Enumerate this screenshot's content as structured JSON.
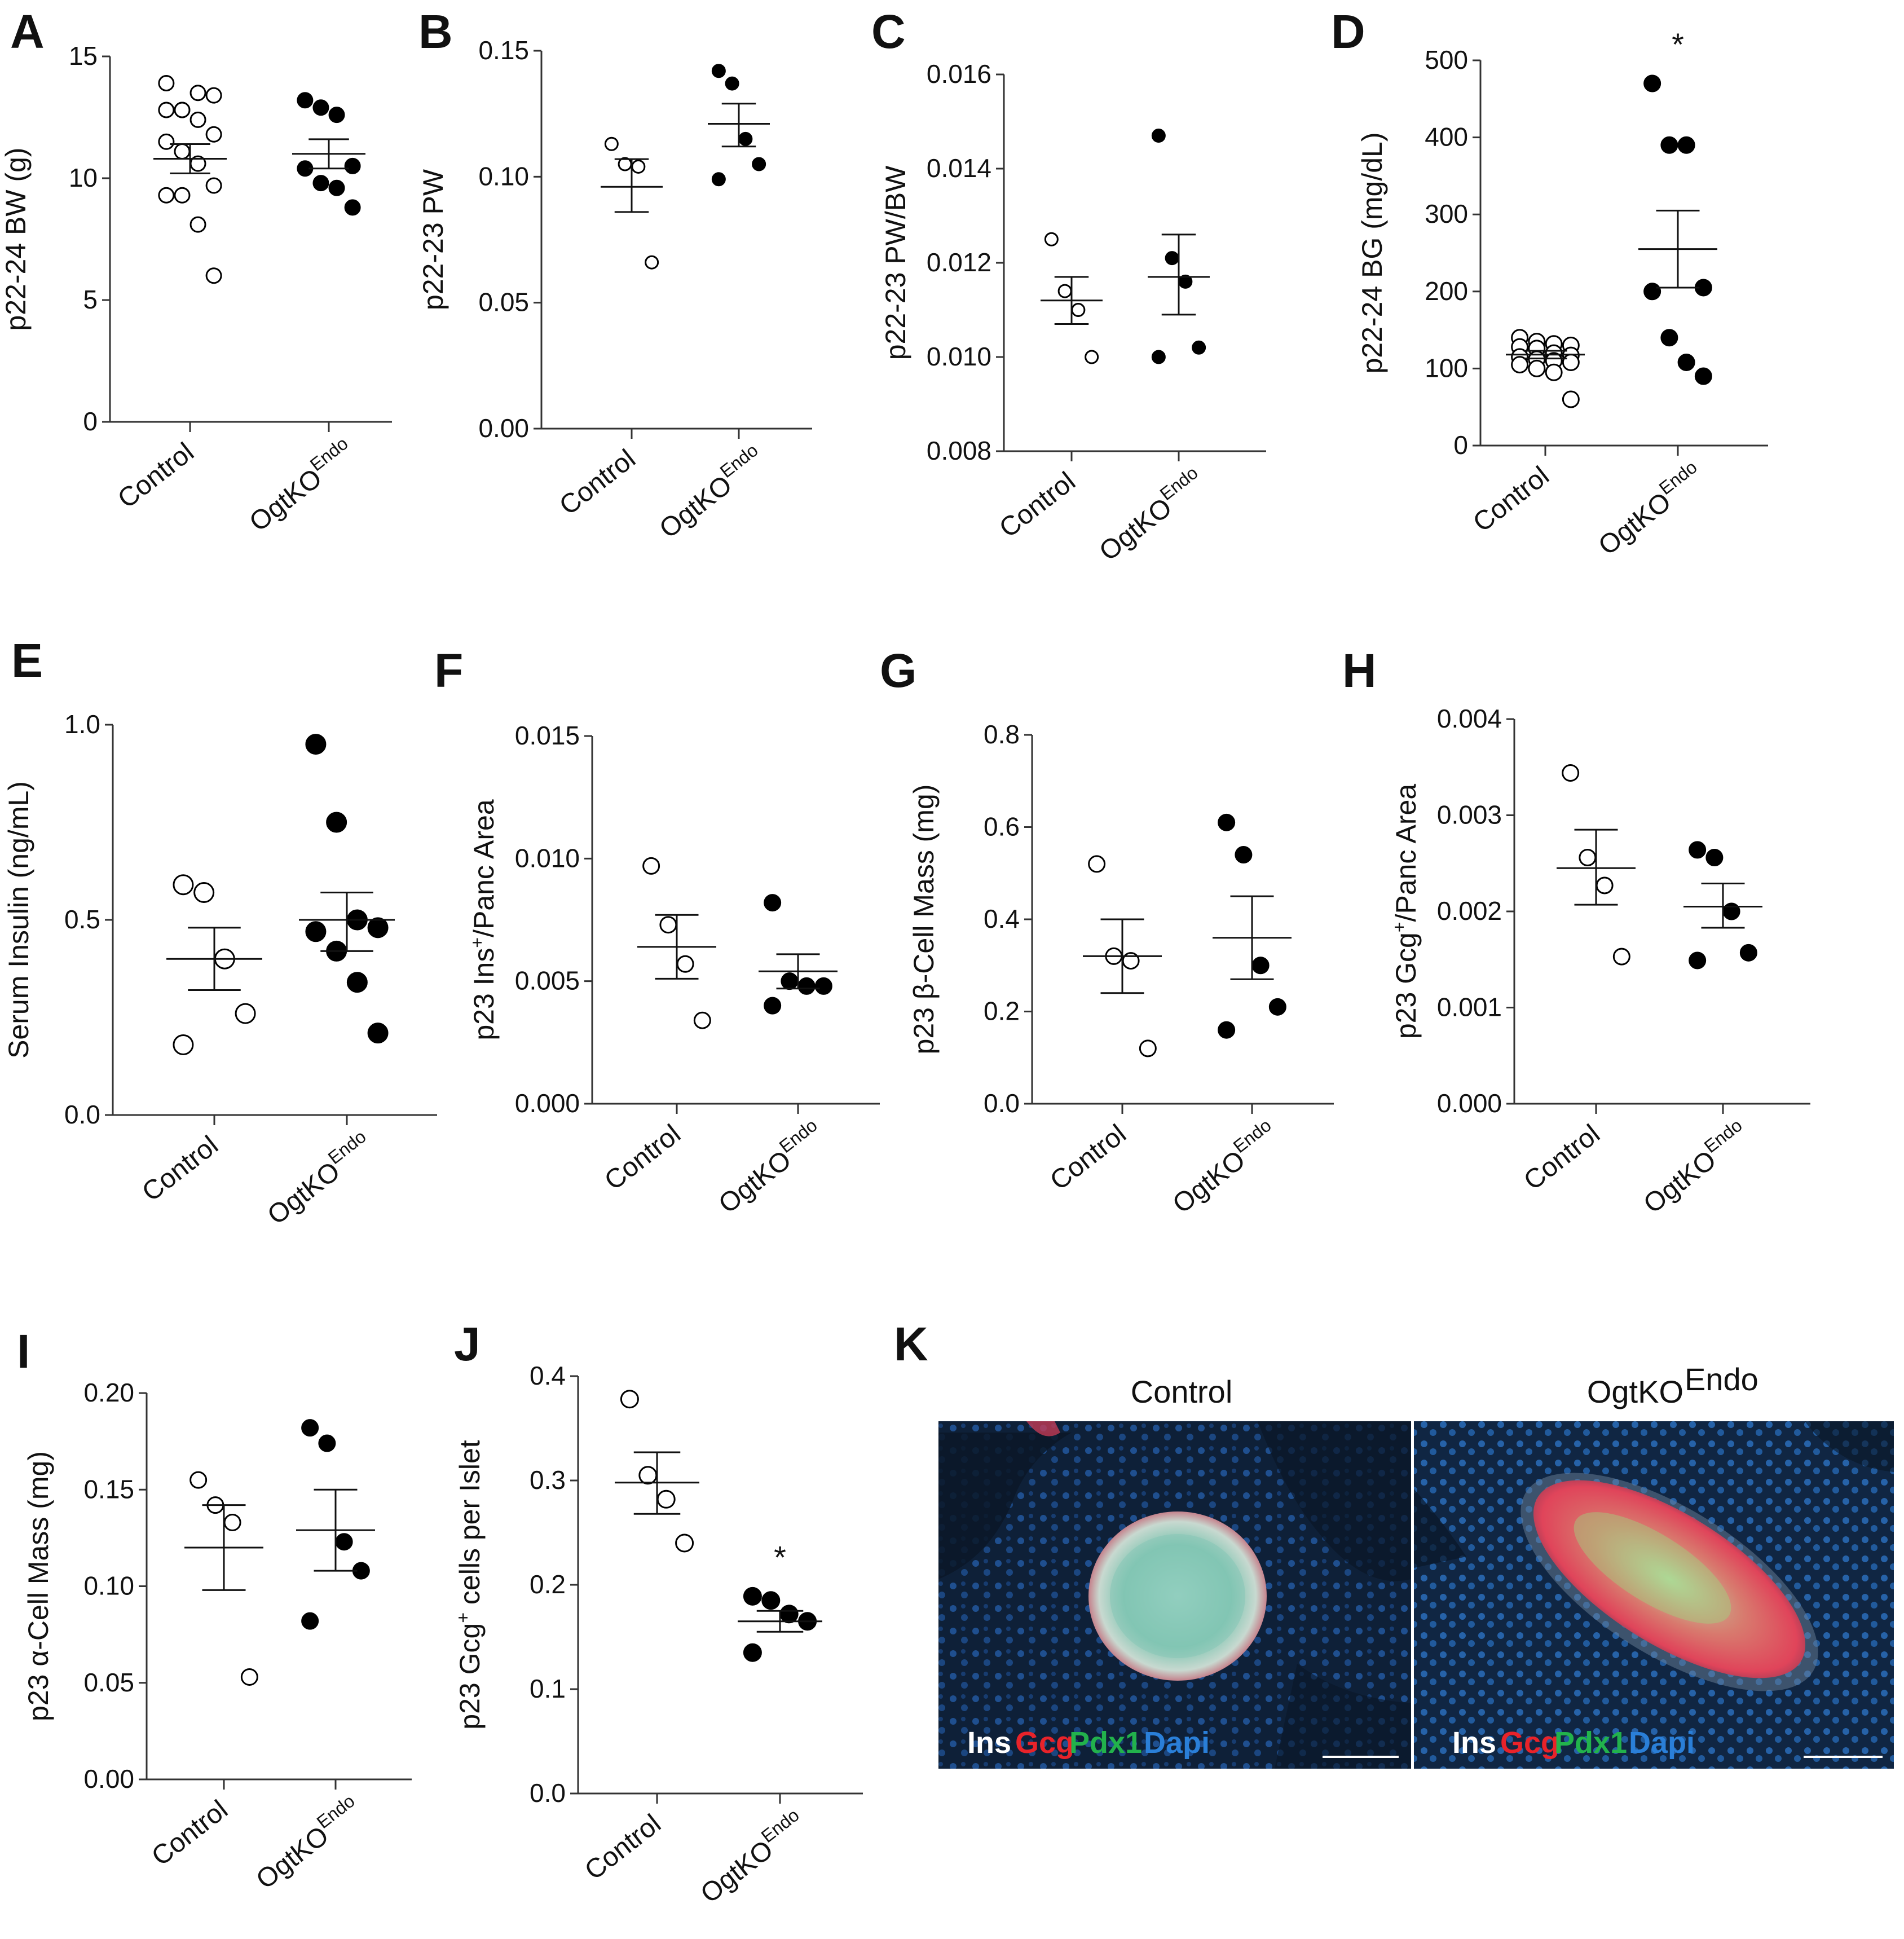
{
  "chart_data": [
    {
      "panel": "A",
      "type": "scatter",
      "ylabel": "p22-24 BW (g)",
      "ylim": [
        0,
        15
      ],
      "ticks": [
        0,
        5,
        10,
        15
      ],
      "categories": [
        "Control",
        "OgtKO"
      ],
      "series": [
        {
          "filled": false,
          "values": [
            13.9,
            12.8,
            13.5,
            13.4,
            12.8,
            12.8,
            12.4,
            11.8,
            11.5,
            11.1,
            10.6,
            9.7,
            9.3,
            9.3,
            8.1,
            6.0
          ],
          "mean": 10.8,
          "sem_low": 10.2,
          "sem_high": 11.4
        },
        {
          "filled": true,
          "values": [
            13.2,
            12.9,
            12.6,
            10.5,
            10.4,
            9.8,
            9.6,
            8.8
          ],
          "mean": 11.0,
          "sem_low": 10.4,
          "sem_high": 11.6
        }
      ]
    },
    {
      "panel": "B",
      "type": "scatter",
      "ylabel": "p22-23 PW",
      "ylim": [
        0,
        0.15
      ],
      "ticks": [
        "0.00",
        "0.05",
        "0.10",
        "0.15"
      ],
      "categories": [
        "Control",
        "OgtKO"
      ],
      "series": [
        {
          "filled": false,
          "values": [
            0.113,
            0.105,
            0.104,
            0.066
          ],
          "mean": 0.096,
          "sem_low": 0.086,
          "sem_high": 0.107
        },
        {
          "filled": true,
          "values": [
            0.142,
            0.137,
            0.115,
            0.105,
            0.099
          ],
          "mean": 0.121,
          "sem_low": 0.112,
          "sem_high": 0.129
        }
      ]
    },
    {
      "panel": "C",
      "type": "scatter",
      "ylabel": "p22-23 PW/BW",
      "ylim": [
        0.008,
        0.016
      ],
      "ticks": [
        "0.008",
        "0.010",
        "0.012",
        "0.014",
        "0.016"
      ],
      "categories": [
        "Control",
        "OgtKO"
      ],
      "series": [
        {
          "filled": false,
          "values": [
            0.0125,
            0.0114,
            0.011,
            0.01
          ],
          "mean": 0.0112,
          "sem_low": 0.0107,
          "sem_high": 0.0117
        },
        {
          "filled": true,
          "values": [
            0.0147,
            0.0121,
            0.0116,
            0.0102,
            0.01
          ],
          "mean": 0.0117,
          "sem_low": 0.0109,
          "sem_high": 0.0126
        }
      ]
    },
    {
      "panel": "D",
      "type": "scatter",
      "ylabel": "p22-24 BG (mg/dL)",
      "ylim": [
        0,
        500
      ],
      "ticks": [
        0,
        100,
        200,
        300,
        400,
        500
      ],
      "categories": [
        "Control",
        "OgtKO"
      ],
      "annotation": "*",
      "series": [
        {
          "filled": false,
          "values": [
            140,
            135,
            132,
            130,
            128,
            126,
            120,
            117,
            115,
            112,
            110,
            108,
            105,
            100,
            95,
            60
          ],
          "mean": 118,
          "sem_low": 113,
          "sem_high": 123
        },
        {
          "filled": true,
          "values": [
            470,
            390,
            390,
            205,
            200,
            140,
            108,
            90
          ],
          "mean": 255,
          "sem_low": 205,
          "sem_high": 305
        }
      ]
    },
    {
      "panel": "E",
      "type": "scatter",
      "ylabel": "Serum Insulin (ng/mL)",
      "ylim": [
        0,
        1.0
      ],
      "ticks": [
        "0.0",
        "0.5",
        "1.0"
      ],
      "categories": [
        "Control",
        "OgtKO"
      ],
      "series": [
        {
          "filled": false,
          "values": [
            0.59,
            0.57,
            0.4,
            0.26,
            0.18
          ],
          "mean": 0.4,
          "sem_low": 0.32,
          "sem_high": 0.48
        },
        {
          "filled": true,
          "values": [
            0.95,
            0.75,
            0.5,
            0.48,
            0.47,
            0.42,
            0.34,
            0.21
          ],
          "mean": 0.5,
          "sem_low": 0.42,
          "sem_high": 0.57
        }
      ]
    },
    {
      "panel": "F",
      "type": "scatter",
      "ylabel": "p23 Ins+/Panc Area",
      "ylim": [
        0,
        0.015
      ],
      "ticks": [
        "0.000",
        "0.005",
        "0.010",
        "0.015"
      ],
      "categories": [
        "Control",
        "OgtKO"
      ],
      "series": [
        {
          "filled": false,
          "values": [
            0.0097,
            0.0073,
            0.0057,
            0.0034
          ],
          "mean": 0.0064,
          "sem_low": 0.0051,
          "sem_high": 0.0077
        },
        {
          "filled": true,
          "values": [
            0.0082,
            0.005,
            0.0048,
            0.0048,
            0.004
          ],
          "mean": 0.0054,
          "sem_low": 0.0047,
          "sem_high": 0.0061
        }
      ]
    },
    {
      "panel": "G",
      "type": "scatter",
      "ylabel": "p23 β-Cell Mass (mg)",
      "ylim": [
        0,
        0.8
      ],
      "ticks": [
        "0.0",
        "0.2",
        "0.4",
        "0.6",
        "0.8"
      ],
      "categories": [
        "Control",
        "OgtKO"
      ],
      "series": [
        {
          "filled": false,
          "values": [
            0.52,
            0.32,
            0.31,
            0.12
          ],
          "mean": 0.32,
          "sem_low": 0.24,
          "sem_high": 0.4
        },
        {
          "filled": true,
          "values": [
            0.61,
            0.54,
            0.3,
            0.21,
            0.16
          ],
          "mean": 0.36,
          "sem_low": 0.27,
          "sem_high": 0.45
        }
      ]
    },
    {
      "panel": "H",
      "type": "scatter",
      "ylabel": "p23 Gcg+/Panc Area",
      "ylim": [
        0,
        0.004
      ],
      "ticks": [
        "0.000",
        "0.001",
        "0.002",
        "0.003",
        "0.004"
      ],
      "categories": [
        "Control",
        "OgtKO"
      ],
      "series": [
        {
          "filled": false,
          "values": [
            0.00344,
            0.00256,
            0.00227,
            0.00153
          ],
          "mean": 0.00245,
          "sem_low": 0.00207,
          "sem_high": 0.00285
        },
        {
          "filled": true,
          "values": [
            0.00264,
            0.00256,
            0.002,
            0.00157,
            0.00149
          ],
          "mean": 0.00205,
          "sem_low": 0.00183,
          "sem_high": 0.00229
        }
      ]
    },
    {
      "panel": "I",
      "type": "scatter",
      "ylabel": "p23 α-Cell Mass (mg)",
      "ylim": [
        0,
        0.2
      ],
      "ticks": [
        "0.00",
        "0.05",
        "0.10",
        "0.15",
        "0.20"
      ],
      "categories": [
        "Control",
        "OgtKO"
      ],
      "series": [
        {
          "filled": false,
          "values": [
            0.155,
            0.142,
            0.133,
            0.053
          ],
          "mean": 0.12,
          "sem_low": 0.098,
          "sem_high": 0.142
        },
        {
          "filled": true,
          "values": [
            0.182,
            0.174,
            0.123,
            0.108,
            0.082
          ],
          "mean": 0.129,
          "sem_low": 0.108,
          "sem_high": 0.15
        }
      ]
    },
    {
      "panel": "J",
      "type": "scatter",
      "ylabel": "p23 Gcg+ cells per Islet",
      "ylim": [
        0,
        0.4
      ],
      "ticks": [
        "0.0",
        "0.1",
        "0.2",
        "0.3",
        "0.4"
      ],
      "categories": [
        "Control",
        "OgtKO"
      ],
      "annotation": "*",
      "series": [
        {
          "filled": false,
          "values": [
            0.378,
            0.305,
            0.282,
            0.24
          ],
          "mean": 0.298,
          "sem_low": 0.268,
          "sem_high": 0.327
        },
        {
          "filled": true,
          "values": [
            0.189,
            0.185,
            0.172,
            0.165,
            0.135
          ],
          "mean": 0.165,
          "sem_low": 0.155,
          "sem_high": 0.175
        }
      ]
    }
  ],
  "labels": {
    "cat_control": "Control",
    "cat_ko_main": "OgtKO",
    "cat_ko_sup": "Endo",
    "ins_sup": "+",
    "gcg_sup": "+"
  },
  "micrograph": {
    "panel": "K",
    "title_control": "Control",
    "title_ko_main": "OgtKO",
    "title_ko_sup": "Endo",
    "stain_ins": "Ins",
    "stain_gcg": "Gcg",
    "stain_pdx1": "Pdx1",
    "stain_dapi": "Dapi",
    "colors": {
      "ins": "#ffffff",
      "gcg": "#e8232a",
      "pdx1": "#22b24c",
      "dapi": "#2a7fd8",
      "background": "#0d1d33"
    }
  }
}
